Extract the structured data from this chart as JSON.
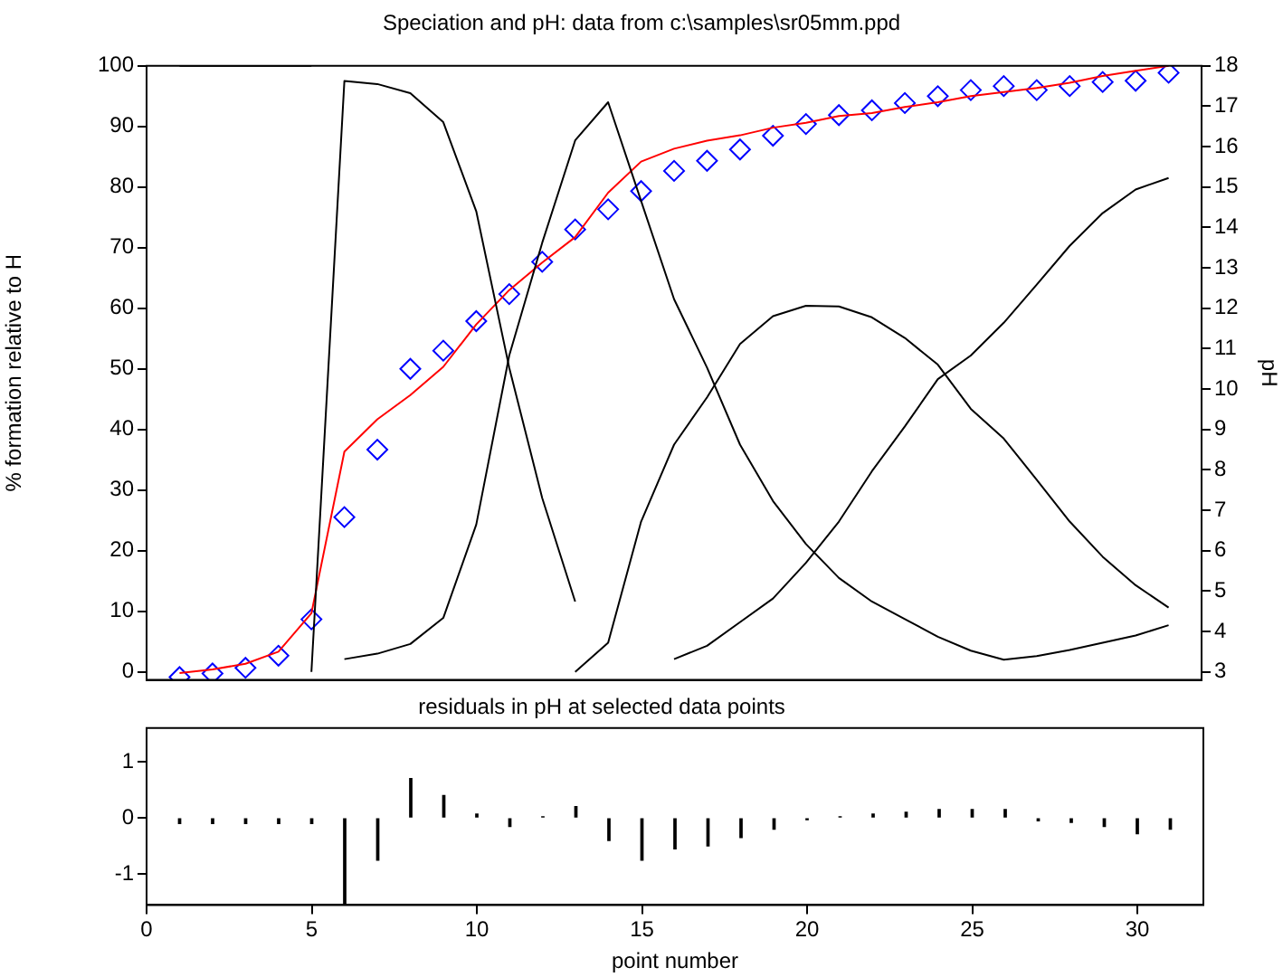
{
  "chart_data": [
    {
      "type": "line",
      "title": "Speciation and pH: data from c:\\samples\\sr05mm.ppd",
      "ylabel": "% formation relative to H",
      "y2label": "pH",
      "x": [
        1,
        2,
        3,
        4,
        5,
        6,
        7,
        8,
        9,
        10,
        11,
        12,
        13,
        14,
        15,
        16,
        17,
        18,
        19,
        20,
        21,
        22,
        23,
        24,
        25,
        26,
        27,
        28,
        29,
        30,
        31
      ],
      "xlim": [
        0,
        32
      ],
      "ylim": [
        -1.33,
        100
      ],
      "yticks": [
        0,
        10,
        20,
        30,
        40,
        50,
        60,
        70,
        80,
        90,
        100
      ],
      "y2lim": [
        2.8,
        18
      ],
      "y2ticks": [
        3,
        4,
        5,
        6,
        7,
        8,
        9,
        10,
        11,
        12,
        13,
        14,
        15,
        16,
        17,
        18
      ],
      "tick_labels": "y",
      "grid": false,
      "legend": false,
      "marker": "none",
      "series": [
        {
          "color": "#000000",
          "values": [
            100,
            100,
            100,
            100,
            100,
            null,
            null,
            null,
            null,
            null,
            null,
            null,
            null,
            null,
            null,
            null,
            null,
            null,
            null,
            null,
            null,
            null,
            null,
            null,
            null,
            null,
            null,
            null,
            null,
            null,
            null
          ]
        },
        {
          "color": "#000000",
          "values": [
            null,
            null,
            null,
            null,
            0,
            97.5,
            97.0,
            95.5,
            90.7,
            76,
            50.2,
            28.7,
            11.6,
            null,
            null,
            null,
            null,
            null,
            null,
            null,
            null,
            null,
            null,
            null,
            null,
            null,
            null,
            null,
            null,
            null,
            null
          ]
        },
        {
          "color": "#000000",
          "values": [
            null,
            null,
            null,
            null,
            null,
            2.1,
            3.0,
            4.6,
            8.9,
            24.3,
            52.2,
            70.8,
            87.7,
            94.0,
            77.7,
            61.5,
            50.2,
            37.5,
            28.2,
            21.1,
            15.5,
            11.6,
            8.7,
            5.8,
            3.5,
            2.0,
            2.6,
            3.6,
            4.8,
            6.0,
            7.7
          ]
        },
        {
          "color": "#000000",
          "values": [
            null,
            null,
            null,
            null,
            null,
            null,
            null,
            null,
            null,
            null,
            null,
            null,
            0,
            4.8,
            24.8,
            37.5,
            45.3,
            54.1,
            58.7,
            60.4,
            60.3,
            58.5,
            55.1,
            50.7,
            43.4,
            38.5,
            31.7,
            24.8,
            19.0,
            14.3,
            10.6
          ]
        },
        {
          "color": "#000000",
          "values": [
            null,
            null,
            null,
            null,
            null,
            null,
            null,
            null,
            null,
            null,
            null,
            null,
            null,
            null,
            null,
            2.1,
            4.3,
            8.2,
            12.1,
            18.0,
            24.8,
            33.1,
            40.5,
            48.3,
            52.2,
            57.6,
            63.9,
            70.3,
            75.7,
            79.6,
            81.5
          ]
        },
        {
          "type": "line",
          "axis": "y2",
          "color": "#ff0000",
          "values": [
            2.97,
            3.06,
            3.2,
            3.5,
            4.45,
            8.45,
            9.25,
            9.85,
            10.55,
            11.6,
            12.45,
            13.13,
            13.76,
            14.86,
            15.63,
            15.95,
            16.15,
            16.28,
            16.47,
            16.59,
            16.76,
            16.83,
            16.98,
            17.1,
            17.25,
            17.35,
            17.45,
            17.58,
            17.75,
            17.88,
            18.0
          ]
        },
        {
          "type": "scatter",
          "axis": "y2",
          "marker": "diamond",
          "color": "#0000ff",
          "values": [
            2.87,
            2.96,
            3.1,
            3.4,
            4.3,
            6.83,
            8.5,
            10.5,
            10.95,
            11.68,
            12.35,
            13.15,
            13.95,
            14.45,
            14.9,
            15.4,
            15.65,
            15.93,
            16.27,
            16.56,
            16.78,
            16.9,
            17.08,
            17.25,
            17.4,
            17.5,
            17.4,
            17.5,
            17.6,
            17.63,
            17.83
          ]
        }
      ]
    },
    {
      "type": "bar",
      "title": "residuals in pH at selected data points",
      "xlabel": "point number",
      "x": [
        1,
        2,
        3,
        4,
        5,
        6,
        7,
        8,
        9,
        10,
        11,
        12,
        13,
        14,
        15,
        16,
        17,
        18,
        19,
        20,
        21,
        22,
        23,
        24,
        25,
        26,
        27,
        28,
        29,
        30,
        31
      ],
      "xlim": [
        0,
        32
      ],
      "xticks": [
        0,
        5,
        10,
        15,
        20,
        25,
        30
      ],
      "ylim": [
        -1.55,
        1.6
      ],
      "yticks": [
        -1,
        0,
        1
      ],
      "grid": false,
      "legend": false,
      "series": [
        {
          "color": "#000000",
          "values": [
            -0.1,
            -0.1,
            -0.1,
            -0.1,
            -0.1,
            -1.55,
            -0.75,
            0.7,
            0.4,
            0.07,
            -0.15,
            0.02,
            0.2,
            -0.4,
            -0.75,
            -0.55,
            -0.5,
            -0.35,
            -0.2,
            -0.03,
            0.02,
            0.07,
            0.1,
            0.15,
            0.15,
            0.15,
            -0.05,
            -0.08,
            -0.15,
            -0.28,
            -0.2
          ]
        }
      ]
    }
  ]
}
